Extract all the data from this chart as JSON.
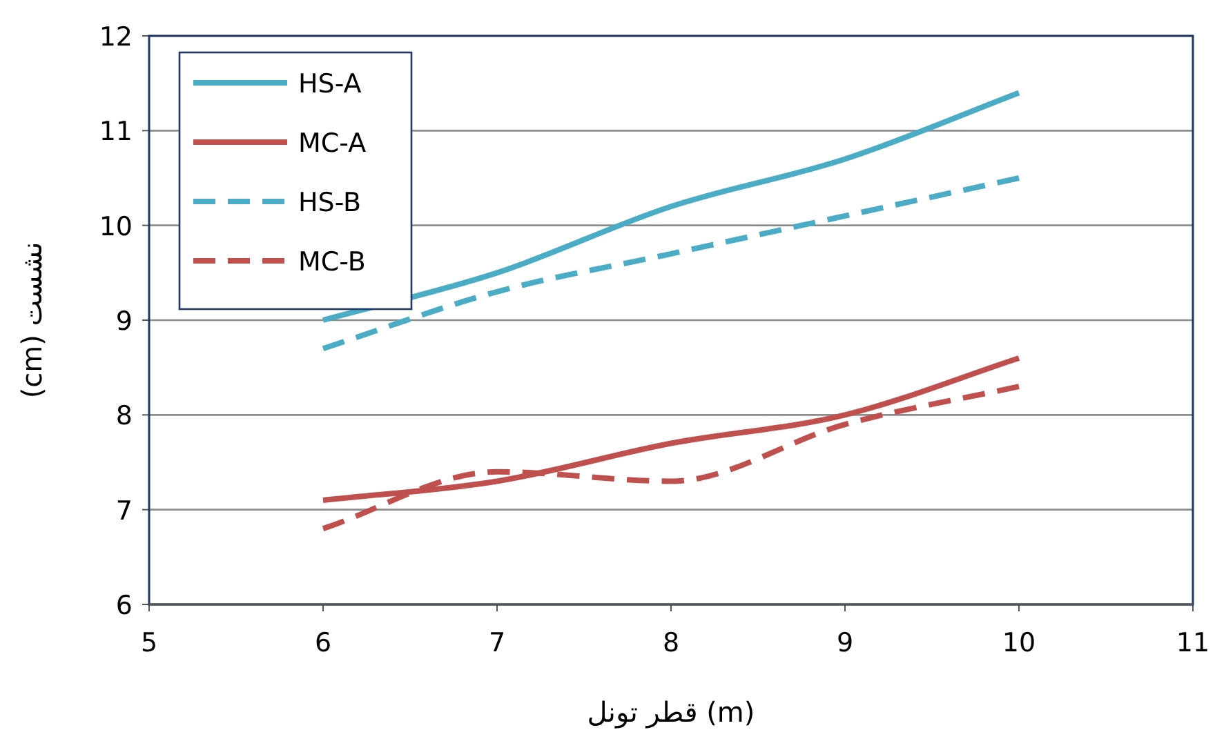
{
  "chart_data": {
    "type": "line",
    "xlabel": "قطر تونل  (m)",
    "ylabel": "(cm)  نشست",
    "x": [
      6,
      7,
      8,
      9,
      10
    ],
    "series": [
      {
        "name": "HS-A",
        "color": "#4bacc6",
        "line_style": "solid",
        "values": [
          9.0,
          9.5,
          10.2,
          10.7,
          11.4
        ]
      },
      {
        "name": "MC-A",
        "color": "#c0504d",
        "line_style": "solid",
        "values": [
          7.1,
          7.3,
          7.7,
          8.0,
          8.6
        ]
      },
      {
        "name": "HS-B",
        "color": "#4bacc6",
        "line_style": "dashed",
        "values": [
          8.7,
          9.3,
          9.7,
          10.1,
          10.5
        ]
      },
      {
        "name": "MC-B",
        "color": "#c0504d",
        "line_style": "dashed",
        "values": [
          6.8,
          7.4,
          7.3,
          7.9,
          8.3
        ]
      }
    ],
    "xlim": [
      5,
      11
    ],
    "xticks": [
      5,
      6,
      7,
      8,
      9,
      10,
      11
    ],
    "ylim": [
      6,
      12
    ],
    "yticks": [
      6,
      7,
      8,
      9,
      10,
      11,
      12
    ],
    "grid": "y",
    "legend": "top left",
    "marker": "none"
  }
}
